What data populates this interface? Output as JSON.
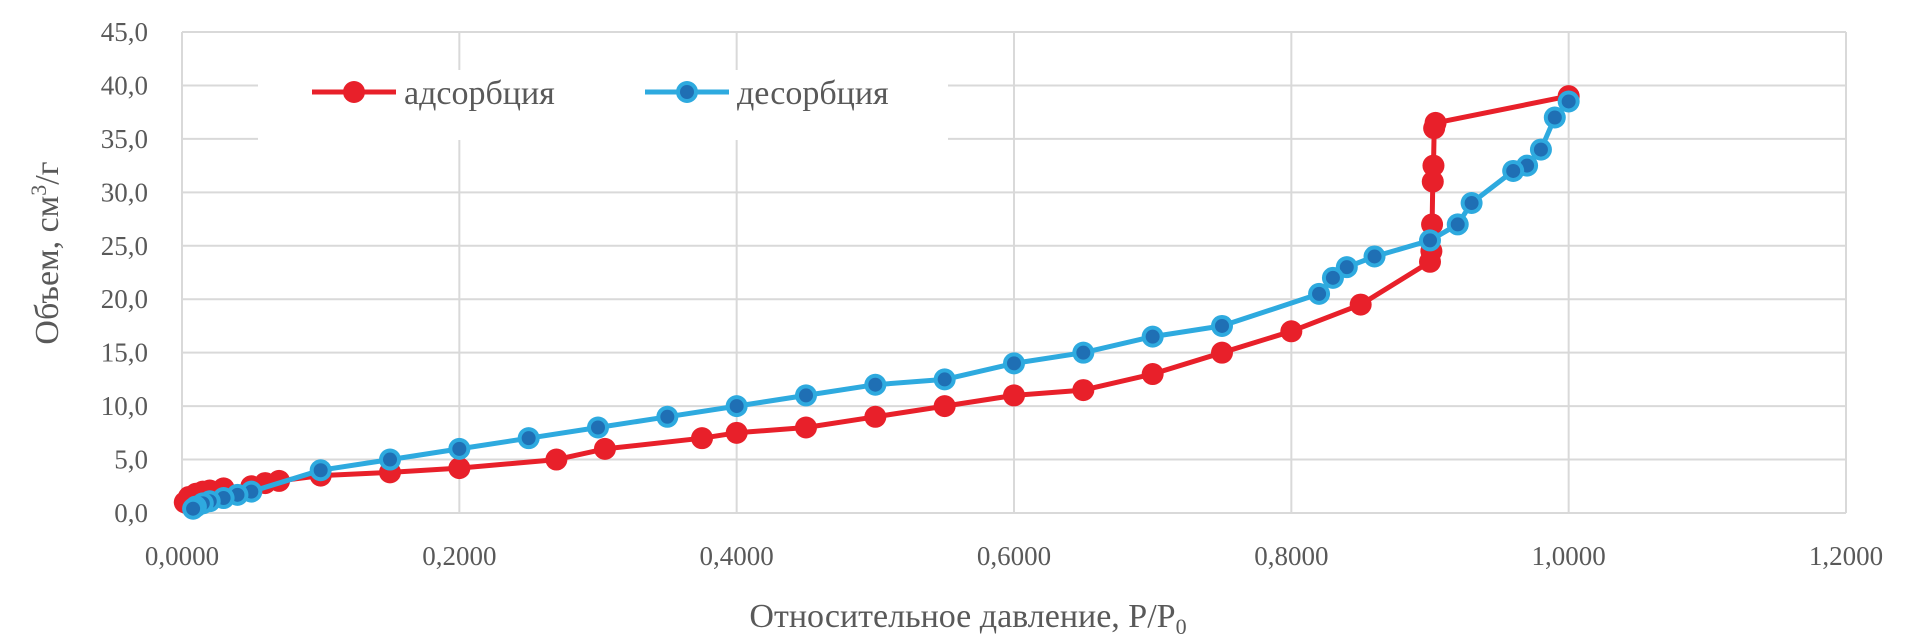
{
  "chart_data": {
    "type": "scatter",
    "xlabel": "Относительное давление, P/P",
    "xlabel_sub": "0",
    "ylabel": "Объем, см",
    "ylabel_sup": "3",
    "ylabel_tail": "/г",
    "xlim": [
      0,
      1.2
    ],
    "ylim": [
      0,
      45
    ],
    "xticks": [
      0,
      0.2,
      0.4,
      0.6,
      0.8,
      1.0,
      1.2
    ],
    "yticks": [
      0,
      5,
      10,
      15,
      20,
      25,
      30,
      35,
      40,
      45
    ],
    "xtick_labels": [
      "0,0000",
      "0,2000",
      "0,4000",
      "0,6000",
      "0,8000",
      "1,0000",
      "1,2000"
    ],
    "ytick_labels": [
      "0,0",
      "5,0",
      "10,0",
      "15,0",
      "20,0",
      "25,0",
      "30,0",
      "35,0",
      "40,0",
      "45,0"
    ],
    "grid": true,
    "legend_position": "top-left",
    "series": [
      {
        "name": "адсорбция",
        "color": "#E8202A",
        "x": [
          0.002,
          0.005,
          0.01,
          0.015,
          0.02,
          0.03,
          0.05,
          0.06,
          0.07,
          0.1,
          0.15,
          0.2,
          0.27,
          0.305,
          0.375,
          0.4,
          0.45,
          0.5,
          0.55,
          0.6,
          0.65,
          0.7,
          0.75,
          0.8,
          0.85,
          0.9,
          0.901,
          0.9015,
          0.902,
          0.9025,
          0.903,
          0.904,
          1.0
        ],
        "y": [
          1.0,
          1.5,
          1.8,
          2.0,
          2.1,
          2.3,
          2.5,
          2.8,
          3.0,
          3.5,
          3.8,
          4.2,
          5.0,
          6.0,
          7.0,
          7.5,
          8.0,
          9.0,
          10.0,
          11.0,
          11.5,
          13.0,
          15.0,
          17.0,
          19.5,
          23.5,
          24.5,
          27.0,
          31.0,
          32.5,
          36.0,
          36.5,
          39.0
        ]
      },
      {
        "name": "десорбция",
        "color": "#2EAADF",
        "x": [
          1.0,
          0.99,
          0.98,
          0.97,
          0.96,
          0.93,
          0.92,
          0.9,
          0.86,
          0.84,
          0.83,
          0.82,
          0.75,
          0.7,
          0.65,
          0.6,
          0.55,
          0.5,
          0.45,
          0.4,
          0.35,
          0.3,
          0.25,
          0.2,
          0.15,
          0.1,
          0.05,
          0.04,
          0.03,
          0.02,
          0.015,
          0.01,
          0.008
        ],
        "y": [
          38.5,
          37.0,
          34.0,
          32.5,
          32.0,
          29.0,
          27.0,
          25.5,
          24.0,
          23.0,
          22.0,
          20.5,
          17.5,
          16.5,
          15.0,
          14.0,
          12.5,
          12.0,
          11.0,
          10.0,
          9.0,
          8.0,
          7.0,
          6.0,
          5.0,
          4.0,
          2.0,
          1.7,
          1.4,
          1.1,
          0.9,
          0.6,
          0.4
        ]
      }
    ]
  }
}
